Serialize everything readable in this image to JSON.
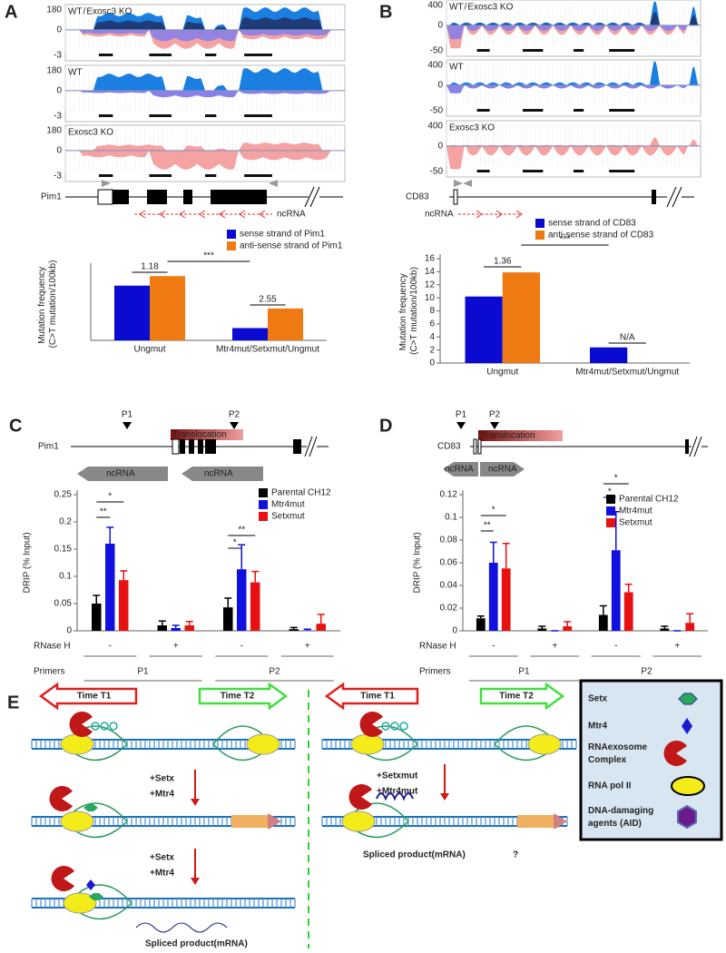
{
  "panels": [
    "A",
    "B",
    "C",
    "D",
    "E"
  ],
  "panel_a": {
    "tracks": [
      {
        "label": [
          "WT",
          "/",
          "Exosc3 KO"
        ],
        "ticks": [
          180,
          0,
          -3
        ]
      },
      {
        "label": [
          "WT"
        ],
        "ticks": [
          180,
          0,
          -3
        ]
      },
      {
        "label": [
          "Exosc3 KO"
        ],
        "ticks": [
          180,
          0,
          -3
        ]
      }
    ],
    "gene": "Pim1",
    "ncrna": "ncRNA"
  },
  "panel_b": {
    "tracks": [
      {
        "label": [
          "WT",
          "/",
          "Exosc3 KO"
        ],
        "ticks": [
          400,
          0,
          -50
        ]
      },
      {
        "label": [
          "WT"
        ],
        "ticks": [
          400,
          0,
          -50
        ]
      },
      {
        "label": [
          "Exosc3 KO"
        ],
        "ticks": [
          400,
          0,
          -50
        ]
      }
    ],
    "gene": "CD83",
    "ncrna": "ncRNA"
  },
  "panel_c": {
    "gene": "Pim1",
    "p1": "P1",
    "p2": "P2",
    "translocation": "Translocation",
    "ncrna": [
      "ncRNA",
      "ncRNA"
    ]
  },
  "panel_d": {
    "gene": "CD83",
    "p1": "P1",
    "p2": "P2",
    "translocation": "Translocation",
    "ncrna": [
      "ncRNA",
      "ncRNA"
    ]
  },
  "panel_e": {
    "left": {
      "time1": "Time T1",
      "time2": "Time T2",
      "steps": [
        [
          "+Setx",
          "+Mtr4"
        ],
        [
          "+Setx",
          "+Mtr4"
        ]
      ],
      "product": "Spliced product(mRNA)"
    },
    "right": {
      "time1": "Time T1",
      "time2": "Time T2",
      "steps": [
        [
          "+Setxmut",
          "+Mtr4mut"
        ]
      ],
      "product": "Spliced product(mRNA)",
      "question": "?"
    },
    "legend": [
      "Setx",
      "Mtr4",
      "RNAexosome Complex",
      "RNA pol II",
      "DNA-damaging agents (AID)"
    ]
  },
  "chart_data": [
    {
      "type": "bar",
      "y_label": "Mutation frequency (C>T mutation/100kb)",
      "categories": [
        "Ungmut",
        "Mtr4mut/Setxmut/Ungmut"
      ],
      "series": [
        {
          "name": "sense strand of Pim1",
          "color": "#0a0ad0",
          "values": [
            98,
            22
          ]
        },
        {
          "name": "anti-sense strand of Pim1",
          "color": "#f07a12",
          "values": [
            115,
            57
          ]
        }
      ],
      "ylim": [
        0,
        130
      ],
      "annotations": [
        "1.18",
        "2.55",
        "***"
      ]
    },
    {
      "type": "bar",
      "y_label": "Mutation frequency (C>T mutation/100kb)",
      "categories": [
        "Ungmut",
        "Mtr4mut/Setxmut/Ungmut"
      ],
      "series": [
        {
          "name": "sense strand of CD83",
          "color": "#0a0ad0",
          "values": [
            10.2,
            2.4
          ]
        },
        {
          "name": "anti-sense strand of CD83",
          "color": "#f07a12",
          "values": [
            13.9,
            null
          ]
        }
      ],
      "ylim": [
        0,
        16
      ],
      "yticks": [
        0,
        2,
        4,
        6,
        8,
        10,
        12,
        14,
        16
      ],
      "annotations": [
        "1.36",
        "N/A",
        "***"
      ]
    },
    {
      "type": "bar",
      "y_label": "DRIP (% Input)",
      "categories": [
        "-",
        "+",
        "-",
        "+"
      ],
      "category_title": "RNase H",
      "groups": [
        "P1",
        "P2"
      ],
      "group_title": "Primers",
      "series": [
        {
          "name": "Parental CH12",
          "color": "#000000",
          "values": [
            0.05,
            0.01,
            0.043,
            0.003
          ],
          "errors": [
            0.015,
            0.008,
            0.017,
            0.003
          ]
        },
        {
          "name": "Mtr4mut",
          "color": "#1010e0",
          "values": [
            0.16,
            0.005,
            0.113,
            0.001
          ],
          "errors": [
            0.03,
            0.005,
            0.045,
            0.002
          ]
        },
        {
          "name": "Setxmut",
          "color": "#e81010",
          "values": [
            0.093,
            0.01,
            0.089,
            0.013
          ],
          "errors": [
            0.017,
            0.007,
            0.02,
            0.017
          ]
        }
      ],
      "ylim": [
        0,
        0.25
      ],
      "yticks": [
        0,
        0.05,
        0.1,
        0.15,
        0.2,
        0.25
      ],
      "annotations": [
        "**",
        "*",
        "**",
        "*"
      ]
    },
    {
      "type": "bar",
      "y_label": "DRIP (% Input)",
      "categories": [
        "-",
        "+",
        "-",
        "+"
      ],
      "category_title": "RNase H",
      "groups": [
        "P1",
        "P2"
      ],
      "group_title": "Primers",
      "series": [
        {
          "name": "Parental CH12",
          "color": "#000000",
          "values": [
            0.011,
            0.002,
            0.014,
            0.002
          ],
          "errors": [
            0.002,
            0.002,
            0.008,
            0.002
          ]
        },
        {
          "name": "Mtr4mut",
          "color": "#1010e0",
          "values": [
            0.06,
            0,
            0.071,
            0
          ],
          "errors": [
            0.018,
            0,
            0.034,
            0
          ]
        },
        {
          "name": "Setxmut",
          "color": "#e81010",
          "values": [
            0.055,
            0.004,
            0.034,
            0.007
          ],
          "errors": [
            0.022,
            0.004,
            0.007,
            0.008
          ]
        }
      ],
      "ylim": [
        0,
        0.12
      ],
      "yticks": [
        0,
        0.02,
        0.04,
        0.06,
        0.08,
        0.1,
        0.12
      ],
      "annotations": [
        "**",
        "*",
        "*",
        "*"
      ]
    }
  ]
}
